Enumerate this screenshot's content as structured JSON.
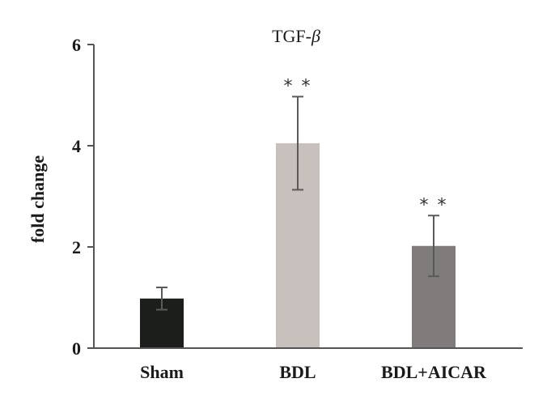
{
  "chart_data": {
    "type": "bar",
    "title_prefix": "TGF-",
    "title_symbol": "β",
    "xlabel": "",
    "ylabel": "fold change",
    "ylim": [
      0,
      6
    ],
    "yticks": [
      0,
      2,
      4,
      6
    ],
    "ytick_labels": [
      "0",
      "2",
      "4",
      "6"
    ],
    "grid": false,
    "categories": [
      "Sham",
      "BDL",
      "BDL+AICAR"
    ],
    "values": [
      0.98,
      4.05,
      2.02
    ],
    "errors": [
      0.22,
      0.92,
      0.6
    ],
    "annotations": [
      "",
      "**",
      "**"
    ],
    "colors": [
      "#1c1e1c",
      "#c8c0bc",
      "#807c7c"
    ],
    "axis_color": "#555555",
    "error_color": "#5a5a5a"
  }
}
